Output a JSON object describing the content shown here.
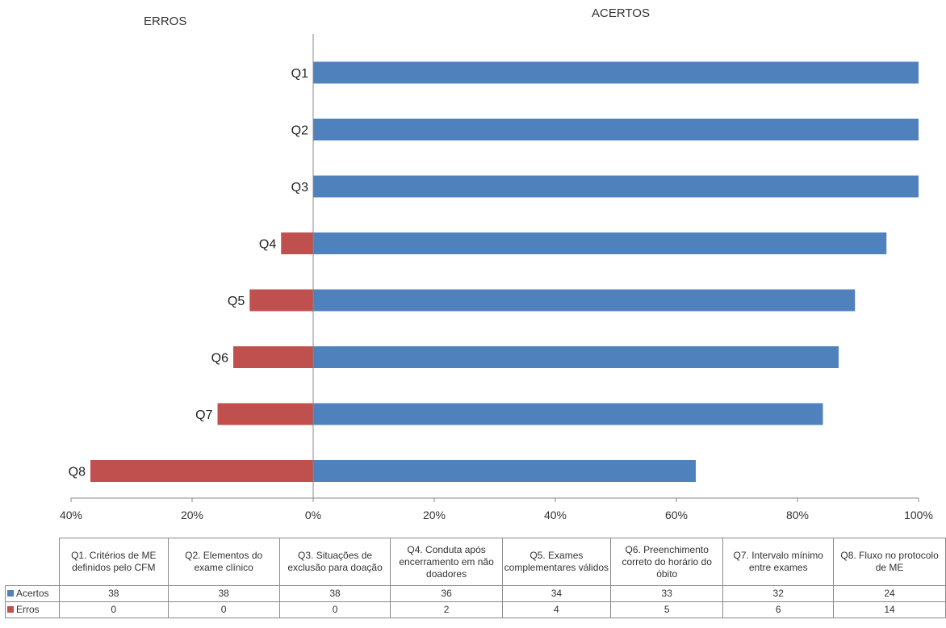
{
  "chart_data": {
    "type": "bar",
    "orientation": "horizontal",
    "stacking": "diverging",
    "left_title": "ERROS",
    "right_title": "ACERTOS",
    "categories": [
      "Q1",
      "Q2",
      "Q3",
      "Q4",
      "Q5",
      "Q6",
      "Q7",
      "Q8"
    ],
    "series": [
      {
        "name": "Acertos",
        "color": "#4f81bd",
        "direction": "right",
        "values_pct": [
          100,
          100,
          100,
          94.7,
          89.5,
          86.8,
          84.2,
          63.2
        ],
        "counts": [
          38,
          38,
          38,
          36,
          34,
          33,
          32,
          24
        ]
      },
      {
        "name": "Erros",
        "color": "#c0504d",
        "direction": "left",
        "values_pct": [
          0,
          0,
          0,
          5.3,
          10.5,
          13.2,
          15.8,
          36.8
        ],
        "counts": [
          0,
          0,
          0,
          2,
          4,
          5,
          6,
          14
        ]
      }
    ],
    "xlim": [
      -40,
      100
    ],
    "x_ticks": [
      -40,
      -20,
      0,
      20,
      40,
      60,
      80,
      100
    ],
    "x_tick_labels": [
      "40%",
      "20%",
      "0%",
      "20%",
      "40%",
      "60%",
      "80%",
      "100%"
    ],
    "grid": false,
    "legend": "data-table-below",
    "table_headers": [
      "Q1. Critérios de ME definidos pelo CFM",
      "Q2. Elementos do exame clínico",
      "Q3. Situações de exclusão para doação",
      "Q4. Conduta após encerramento em não doadores",
      "Q5. Exames complementares válidos",
      "Q6. Preenchimento correto do horário do óbito",
      "Q7. Intervalo mínimo entre exames",
      "Q8. Fluxo no protocolo de ME"
    ]
  }
}
